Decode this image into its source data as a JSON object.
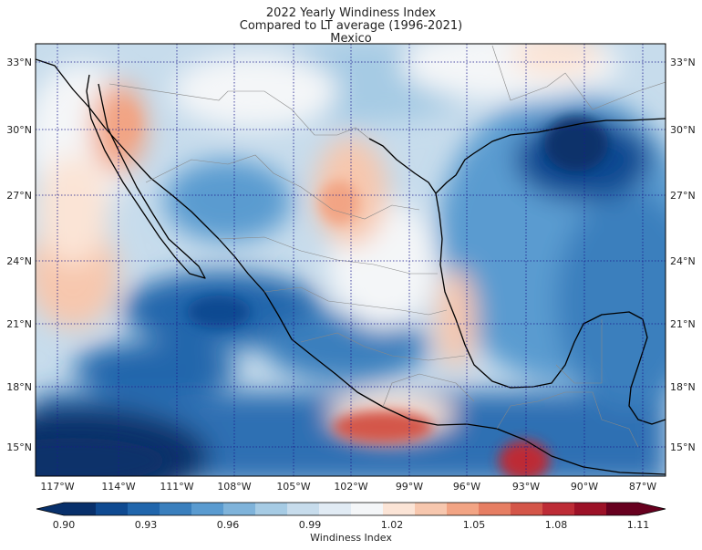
{
  "title": {
    "line1": "2022 Yearly Windiness Index",
    "line2": "Compared to LT average (1996-2021)",
    "line3": "Mexico"
  },
  "map": {
    "lon_range": [
      -118,
      -85.5
    ],
    "lat_range": [
      13.5,
      33.8
    ],
    "lon_ticks": [
      {
        "value": -117,
        "label": "117°W"
      },
      {
        "value": -114,
        "label": "114°W"
      },
      {
        "value": -111,
        "label": "111°W"
      },
      {
        "value": -108,
        "label": "108°W"
      },
      {
        "value": -105,
        "label": "105°W"
      },
      {
        "value": -102,
        "label": "102°W"
      },
      {
        "value": -99,
        "label": "99°W"
      },
      {
        "value": -96,
        "label": "96°W"
      },
      {
        "value": -93,
        "label": "93°W"
      },
      {
        "value": -90,
        "label": "90°W"
      },
      {
        "value": -87,
        "label": "87°W"
      }
    ],
    "lat_ticks": [
      {
        "value": 33,
        "label": "33°N"
      },
      {
        "value": 30,
        "label": "30°N"
      },
      {
        "value": 27,
        "label": "27°N"
      },
      {
        "value": 24,
        "label": "24°N"
      },
      {
        "value": 21,
        "label": "21°N"
      },
      {
        "value": 18,
        "label": "18°N"
      },
      {
        "value": 15,
        "label": "15°N"
      }
    ],
    "gridlines": "dotted"
  },
  "colorbar": {
    "label": "Windiness Index",
    "min": 0.9,
    "max": 1.11,
    "tick_labels": [
      "0.90",
      "0.93",
      "0.96",
      "0.99",
      "1.02",
      "1.05",
      "1.08",
      "1.11"
    ],
    "colors": [
      "#08306b",
      "#0f4a91",
      "#2166ac",
      "#3a7fbd",
      "#5a9bd0",
      "#7fb3da",
      "#a6cbe4",
      "#c7dcec",
      "#e1ebf4",
      "#f4f6f8",
      "#fbe4d6",
      "#f7c7ae",
      "#f2a484",
      "#e67e63",
      "#d45649",
      "#bd2c36",
      "#9c1127",
      "#67001f"
    ]
  },
  "anomaly_regions": [
    {
      "id": "gulf-tehuantepec-high",
      "lon": -99.5,
      "lat": 15.6,
      "value": 1.08
    },
    {
      "id": "chiapas-coast-high",
      "lon": -92.6,
      "lat": 14.3,
      "value": 1.09
    },
    {
      "id": "coahuila-high",
      "lon": -101.8,
      "lat": 26.8,
      "value": 1.04
    },
    {
      "id": "sonora-high",
      "lon": -113.5,
      "lat": 30.3,
      "value": 1.04
    },
    {
      "id": "louisiana-low",
      "lon": -91.0,
      "lat": 28.8,
      "value": 0.91
    },
    {
      "id": "nayarit-low",
      "lon": -107.5,
      "lat": 21.5,
      "value": 0.92
    },
    {
      "id": "pacific-sw-low",
      "lon": -116.5,
      "lat": 14.5,
      "value": 0.9
    }
  ]
}
